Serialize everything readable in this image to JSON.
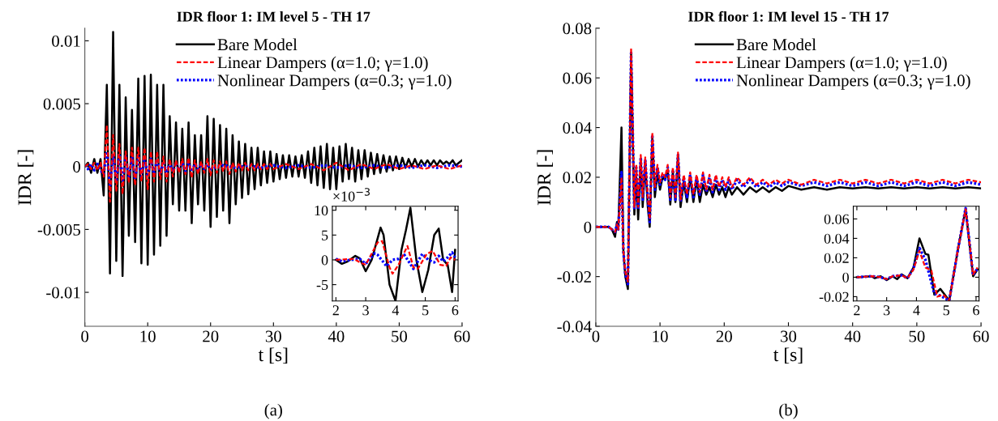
{
  "chart_data": [
    {
      "type": "line",
      "title": "IDR floor 1: IM level 5 - TH 17",
      "xlabel": "t [s]",
      "ylabel": "IDR [-]",
      "xlim": [
        0,
        60
      ],
      "xticks": [
        0,
        10,
        20,
        30,
        40,
        50,
        60
      ],
      "ylim": [
        -0.0127,
        0.011
      ],
      "yticks": [
        -0.01,
        -0.005,
        0,
        0.005,
        0.01
      ],
      "legend": "top right",
      "annotations": [
        "(a)"
      ],
      "series": [
        {
          "name": "Bare Model",
          "color": "#000000",
          "line_style": "solid",
          "x": [
            0,
            0.5,
            1,
            1.5,
            2,
            2.5,
            3,
            3.5,
            4,
            4.5,
            5,
            5.5,
            6,
            6.5,
            7,
            7.5,
            8,
            8.5,
            9,
            9.5,
            10,
            10.5,
            11,
            11.5,
            12,
            12.5,
            13,
            13.5,
            14,
            14.5,
            15,
            15.5,
            16,
            16.5,
            17,
            17.5,
            18,
            18.5,
            19,
            19.5,
            20,
            20.5,
            21,
            21.5,
            22,
            22.5,
            23,
            23.5,
            24,
            24.5,
            25,
            25.5,
            26,
            26.5,
            27,
            27.5,
            28,
            28.5,
            29,
            29.5,
            30,
            30.5,
            31,
            31.5,
            32,
            32.5,
            33,
            33.5,
            34,
            34.5,
            35,
            35.5,
            36,
            36.5,
            37,
            37.5,
            38,
            38.5,
            39,
            39.5,
            40,
            40.5,
            41,
            41.5,
            42,
            42.5,
            43,
            43.5,
            44,
            44.5,
            45,
            45.5,
            46,
            46.5,
            47,
            47.5,
            48,
            48.5,
            49,
            49.5,
            50,
            50.5,
            51,
            51.5,
            52,
            52.5,
            53,
            53.5,
            54,
            54.5,
            55,
            55.5,
            56,
            56.5,
            57,
            57.5,
            58,
            58.5,
            59,
            59.5,
            60
          ],
          "values": [
            0,
            0.0003,
            -0.0005,
            0.0006,
            -0.0005,
            0.0006,
            -0.0023,
            0.0065,
            -0.0085,
            0.0107,
            -0.0075,
            0.0065,
            -0.0087,
            0.0055,
            -0.0055,
            0.0045,
            -0.006,
            0.007,
            -0.0077,
            0.0072,
            -0.0078,
            0.0073,
            -0.007,
            0.0065,
            -0.0063,
            0.0065,
            -0.0055,
            0.004,
            -0.003,
            0.0035,
            -0.0035,
            0.003,
            -0.0035,
            0.0035,
            -0.0045,
            0.0025,
            -0.003,
            0.0025,
            -0.0035,
            0.004,
            -0.0048,
            0.0038,
            -0.004,
            0.0033,
            -0.0035,
            0.003,
            -0.0045,
            0.0025,
            -0.003,
            0.002,
            -0.0025,
            0.0018,
            -0.0022,
            0.0015,
            -0.0018,
            0.0015,
            -0.0015,
            0.0012,
            -0.0013,
            0.0012,
            -0.0012,
            0.001,
            -0.001,
            0.0009,
            -0.0009,
            0.0009,
            -0.0008,
            0.0008,
            -0.0008,
            0.0009,
            -0.0009,
            0.0012,
            -0.0013,
            0.0015,
            -0.0015,
            0.0016,
            -0.0017,
            0.0018,
            -0.0018,
            0.0015,
            -0.0018,
            0.0016,
            -0.0012,
            0.0018,
            -0.001,
            0.0015,
            -0.0012,
            0.0013,
            -0.001,
            0.0013,
            -0.0008,
            0.0011,
            -0.0006,
            0.001,
            -0.0005,
            0.0009,
            -0.0004,
            0.0008,
            -0.0003,
            0.0008,
            -0.0002,
            0.0007,
            -0.0001,
            0.0006,
            0,
            0.0006,
            0,
            0.0005,
            0.0001,
            0.0005,
            0.0001,
            0.0005,
            0.0001,
            0.0005,
            0.0002,
            0.0004,
            0.0002,
            0.0005,
            0.0001,
            0.0003,
            0.0005
          ]
        },
        {
          "name": "Linear Dampers (α=1.0; γ=1.0)",
          "color": "#ff0000",
          "line_style": "dashed",
          "x": [
            0,
            0.5,
            1,
            1.5,
            2,
            2.5,
            3,
            3.5,
            4,
            4.5,
            5,
            5.5,
            6,
            6.5,
            7,
            7.5,
            8,
            8.5,
            9,
            9.5,
            10,
            10.5,
            11,
            11.5,
            12,
            12.5,
            13,
            13.5,
            14,
            14.5,
            15,
            15.5,
            16,
            16.5,
            17,
            17.5,
            18,
            18.5,
            19,
            19.5,
            20,
            20.5,
            21,
            21.5,
            22,
            22.5,
            23,
            23.5,
            24,
            24.5,
            25,
            25.5,
            26,
            26.5,
            27,
            27.5,
            28,
            28.5,
            29,
            29.5,
            30,
            32,
            34,
            36,
            38,
            40,
            42,
            44,
            46,
            48,
            50,
            52,
            54,
            56,
            58,
            60
          ],
          "values": [
            0,
            0.0002,
            -0.0002,
            0.0003,
            -0.0003,
            0.0003,
            -0.0008,
            0.0033,
            -0.0028,
            0.0025,
            -0.002,
            0.0018,
            -0.0022,
            0.0012,
            -0.0013,
            0.0015,
            -0.0015,
            0.0015,
            -0.0012,
            0.0015,
            -0.0018,
            0.0012,
            -0.0012,
            0.0012,
            -0.001,
            0.0008,
            -0.0012,
            0.0006,
            -0.0008,
            0.0005,
            -0.0005,
            0.0006,
            -0.0006,
            0.0007,
            -0.0009,
            0.0005,
            -0.0006,
            0.0004,
            -0.0005,
            0.0006,
            -0.0007,
            0.0005,
            -0.0005,
            0.0004,
            -0.0004,
            0.0004,
            -0.0006,
            0.0003,
            -0.0004,
            0.0003,
            -0.0003,
            0.0003,
            -0.0003,
            0.0002,
            -0.0003,
            0.0002,
            -0.0002,
            0.0002,
            -0.0002,
            0.0002,
            -0.0002,
            0.0002,
            -0.0002,
            0.0002,
            -0.0003,
            0.0003,
            -0.0003,
            0.0002,
            -0.0002,
            0.0002,
            -0.0002,
            0.0001,
            -0.0002,
            0.0001,
            -0.0002,
            0.0001
          ]
        },
        {
          "name": "Nonlinear Dampers (α=0.3; γ=1.0)",
          "color": "#0000ff",
          "line_style": "dotted",
          "x": [
            0,
            0.5,
            1,
            1.5,
            2,
            2.5,
            3,
            3.5,
            4,
            4.5,
            5,
            5.5,
            6,
            6.5,
            7,
            7.5,
            8,
            8.5,
            9,
            9.5,
            10,
            10.5,
            11,
            11.5,
            12,
            12.5,
            13,
            13.5,
            14,
            14.5,
            15,
            15.5,
            16,
            16.5,
            17,
            17.5,
            18,
            18.5,
            19,
            19.5,
            20,
            22,
            24,
            26,
            28,
            30,
            32,
            34,
            36,
            38,
            40,
            42,
            44,
            46,
            48,
            50,
            52,
            54,
            56,
            58,
            60
          ],
          "values": [
            0.0001,
            -0.0002,
            0.0002,
            -0.0003,
            0.0002,
            -0.0003,
            -0.0006,
            0.0012,
            -0.0015,
            0.001,
            -0.0012,
            0.001,
            -0.0011,
            0.0008,
            -0.0009,
            0.0008,
            -0.001,
            0.0008,
            -0.0008,
            0.0007,
            -0.0008,
            0.0006,
            -0.0006,
            0.0006,
            -0.0006,
            0.0004,
            -0.0005,
            0.0003,
            -0.0004,
            0.0003,
            -0.0003,
            0.0003,
            -0.0004,
            0.0003,
            -0.0004,
            0.0002,
            -0.0002,
            0.0002,
            -0.0002,
            0.0002,
            -0.0002,
            0.0001,
            -0.0001,
            0.0001,
            -0.0001,
            0.0001,
            -0.0001,
            0.0001,
            -0.0001,
            0.0001,
            -0.0001,
            0.0001,
            -0.0001,
            0.0001,
            -0.0001,
            0.0001,
            -0.0001,
            0.0001,
            -0.0001,
            0.0001,
            0
          ]
        }
      ]
    },
    {
      "type": "line",
      "xlim": [
        1.88,
        6.1
      ],
      "xticks": [
        2,
        3,
        4,
        5,
        6
      ],
      "ylim": [
        -8.3,
        10.8
      ],
      "yticks": [
        -5,
        0,
        5,
        10
      ],
      "annotations": [
        "×10$^{−3}$"
      ],
      "series": [
        {
          "color": "#000000",
          "line_style": "solid",
          "x": [
            2,
            2.2,
            2.4,
            2.65,
            2.8,
            3.0,
            3.2,
            3.5,
            3.6,
            3.8,
            4.0,
            4.2,
            4.35,
            4.5,
            4.7,
            4.9,
            5.1,
            5.3,
            5.45,
            5.6,
            5.75,
            5.9,
            6.0
          ],
          "values": [
            0,
            -0.8,
            -0.3,
            0.8,
            0.3,
            -2.3,
            0,
            6.5,
            5,
            -5,
            -8.3,
            2,
            6,
            10.5,
            0,
            -6.5,
            -2,
            5,
            6.3,
            0,
            -1,
            -6.5,
            2
          ]
        },
        {
          "color": "#ff0000",
          "line_style": "dashed",
          "x": [
            2,
            2.6,
            2.8,
            3.0,
            3.4,
            3.55,
            3.8,
            3.9,
            4.1,
            4.4,
            4.6,
            4.75,
            5.05,
            5.25,
            5.5,
            5.7,
            5.85,
            6.0
          ],
          "values": [
            0,
            0.2,
            -0.5,
            -1,
            3.5,
            3.8,
            -1.5,
            -2.8,
            -1,
            2.8,
            -1.5,
            -1.8,
            1.2,
            1.8,
            -1,
            -1.2,
            0.5,
            0
          ]
        },
        {
          "color": "#0000ff",
          "line_style": "dotted",
          "x": [
            2,
            2.2,
            2.5,
            2.8,
            3.0,
            3.3,
            3.4,
            3.6,
            3.7,
            3.9,
            4.1,
            4.3,
            4.6,
            4.9,
            5.1,
            5.3,
            5.45,
            5.6,
            5.75,
            5.9,
            6.0
          ],
          "values": [
            0.2,
            -0.3,
            0,
            0.2,
            -0.8,
            1.3,
            1,
            -0.5,
            -1.3,
            0,
            0.2,
            1,
            -1.8,
            1.2,
            0,
            -0.5,
            0.8,
            -0.3,
            0.5,
            1.5,
            0.5
          ]
        }
      ]
    },
    {
      "type": "line",
      "title": "IDR floor 1: IM level 15 - TH 17",
      "xlabel": "t [s]",
      "ylabel": "IDR [-]",
      "xlim": [
        0,
        60
      ],
      "xticks": [
        0,
        10,
        20,
        30,
        40,
        50,
        60
      ],
      "ylim": [
        -0.04,
        0.08
      ],
      "yticks": [
        -0.04,
        -0.02,
        0,
        0.02,
        0.04,
        0.06,
        0.08
      ],
      "legend": "top right",
      "annotations": [
        "(b)"
      ],
      "series": [
        {
          "name": "Bare Model",
          "color": "#000000",
          "line_style": "solid",
          "x": [
            0,
            2,
            2.5,
            3,
            3.3,
            3.5,
            4.0,
            4.3,
            4.6,
            5.0,
            5.5,
            6.0,
            6.3,
            6.6,
            7.0,
            7.3,
            7.7,
            8.1,
            8.4,
            8.8,
            9.2,
            9.6,
            10.0,
            10.4,
            10.8,
            11.2,
            11.6,
            12.0,
            12.4,
            12.8,
            13.2,
            13.7,
            14.2,
            14.7,
            15.2,
            15.7,
            16.2,
            16.7,
            17.2,
            17.7,
            18.2,
            18.7,
            19.2,
            19.7,
            20.2,
            20.7,
            21.2,
            22,
            23,
            24,
            25,
            26,
            27,
            28,
            29,
            30,
            32,
            34,
            36,
            38,
            40,
            42,
            44,
            46,
            48,
            50,
            52,
            54,
            56,
            58,
            60
          ],
          "values": [
            0,
            0,
            -0.001,
            -0.004,
            0.002,
            -0.001,
            0.04,
            -0.01,
            -0.02,
            -0.025,
            0.07,
            0.005,
            0.02,
            0.003,
            0.027,
            0.008,
            0.026,
            0.008,
            0.0,
            0.036,
            0.012,
            0.022,
            0.015,
            0.02,
            0.019,
            0.023,
            0.009,
            0.022,
            0.01,
            0.029,
            0.008,
            0.018,
            0.01,
            0.02,
            0.01,
            0.019,
            0.01,
            0.017,
            0.013,
            0.016,
            0.012,
            0.017,
            0.013,
            0.016,
            0.012,
            0.016,
            0.013,
            0.016,
            0.013,
            0.016,
            0.014,
            0.016,
            0.014,
            0.016,
            0.0145,
            0.0165,
            0.015,
            0.016,
            0.015,
            0.016,
            0.0155,
            0.016,
            0.0155,
            0.016,
            0.0155,
            0.016,
            0.0155,
            0.016,
            0.0155,
            0.016,
            0.0155
          ]
        },
        {
          "name": "Linear Dampers (α=1.0; γ=1.0)",
          "color": "#ff0000",
          "line_style": "dashed",
          "x": [
            0,
            2,
            2.5,
            3,
            3.3,
            3.5,
            4.0,
            4.3,
            4.6,
            5.0,
            5.5,
            6.0,
            6.3,
            6.6,
            7.0,
            7.3,
            7.7,
            8.1,
            8.4,
            8.8,
            9.2,
            9.6,
            10.0,
            10.4,
            10.8,
            11.2,
            11.6,
            12.0,
            12.4,
            12.8,
            13.2,
            13.7,
            14.2,
            14.7,
            15.2,
            15.7,
            16.2,
            16.7,
            17.2,
            17.7,
            18.2,
            18.7,
            19.2,
            19.7,
            20.2,
            20.7,
            21.2,
            22,
            23,
            24,
            25,
            26,
            27,
            28,
            29,
            30,
            32,
            34,
            36,
            38,
            40,
            42,
            44,
            46,
            48,
            50,
            52,
            54,
            56,
            58,
            60
          ],
          "values": [
            0,
            0,
            -0.001,
            -0.002,
            0.001,
            -0.001,
            0.02,
            -0.01,
            -0.018,
            -0.022,
            0.072,
            0.008,
            0.025,
            0.008,
            0.029,
            0.012,
            0.028,
            0.012,
            0.003,
            0.038,
            0.016,
            0.025,
            0.018,
            0.022,
            0.02,
            0.025,
            0.012,
            0.024,
            0.012,
            0.03,
            0.011,
            0.021,
            0.013,
            0.022,
            0.013,
            0.021,
            0.014,
            0.022,
            0.015,
            0.021,
            0.015,
            0.021,
            0.016,
            0.02,
            0.016,
            0.02,
            0.016,
            0.02,
            0.017,
            0.02,
            0.017,
            0.019,
            0.017,
            0.019,
            0.0175,
            0.019,
            0.017,
            0.019,
            0.0175,
            0.019,
            0.0175,
            0.019,
            0.0175,
            0.019,
            0.0175,
            0.019,
            0.0175,
            0.019,
            0.0175,
            0.019,
            0.018
          ]
        },
        {
          "name": "Nonlinear Dampers (α=0.3; γ=1.0)",
          "color": "#0000ff",
          "line_style": "dotted",
          "x": [
            0,
            2,
            2.5,
            3,
            3.3,
            3.5,
            4.0,
            4.3,
            4.6,
            5.0,
            5.5,
            6.0,
            6.3,
            6.6,
            7.0,
            7.3,
            7.7,
            8.1,
            8.4,
            8.8,
            9.2,
            9.6,
            10.0,
            10.4,
            10.8,
            11.2,
            11.6,
            12.0,
            12.4,
            12.8,
            13.2,
            13.7,
            14.2,
            14.7,
            15.2,
            15.7,
            16.2,
            16.7,
            17.2,
            17.7,
            18.2,
            18.7,
            19.2,
            19.7,
            20.2,
            20.7,
            21.2,
            22,
            23,
            24,
            25,
            26,
            27,
            28,
            29,
            30,
            32,
            34,
            36,
            38,
            40,
            42,
            44,
            46,
            48,
            50,
            52,
            54,
            56,
            58,
            60
          ],
          "values": [
            0,
            0,
            -0.001,
            -0.002,
            0.001,
            -0.001,
            0.022,
            -0.01,
            -0.019,
            -0.023,
            0.07,
            0.007,
            0.024,
            0.007,
            0.028,
            0.011,
            0.027,
            0.011,
            0.002,
            0.037,
            0.015,
            0.024,
            0.017,
            0.021,
            0.019,
            0.024,
            0.011,
            0.023,
            0.011,
            0.029,
            0.01,
            0.02,
            0.012,
            0.021,
            0.012,
            0.02,
            0.013,
            0.021,
            0.014,
            0.02,
            0.014,
            0.02,
            0.015,
            0.019,
            0.015,
            0.019,
            0.015,
            0.019,
            0.016,
            0.019,
            0.016,
            0.018,
            0.016,
            0.018,
            0.0165,
            0.018,
            0.0165,
            0.018,
            0.0165,
            0.018,
            0.0165,
            0.018,
            0.0165,
            0.018,
            0.0165,
            0.018,
            0.0165,
            0.018,
            0.0165,
            0.018,
            0.017
          ]
        }
      ]
    },
    {
      "type": "line",
      "xlim": [
        1.88,
        6.1
      ],
      "xticks": [
        2,
        3,
        4,
        5,
        6
      ],
      "ylim": [
        -0.0245,
        0.073
      ],
      "yticks": [
        -0.02,
        0,
        0.02,
        0.04,
        0.06
      ],
      "series": [
        {
          "color": "#000000",
          "line_style": "solid",
          "x": [
            2,
            2.5,
            2.6,
            2.8,
            3.0,
            3.2,
            3.35,
            3.5,
            3.7,
            3.9,
            4.1,
            4.3,
            4.4,
            4.6,
            4.8,
            5.1,
            5.4,
            5.65,
            5.9,
            6.05
          ],
          "values": [
            0,
            0.001,
            -0.001,
            0.001,
            -0.003,
            0.001,
            -0.002,
            0.003,
            -0.001,
            0.01,
            0.04,
            0.024,
            0.023,
            -0.018,
            -0.012,
            -0.024,
            0.03,
            0.07,
            0.001,
            0.008
          ]
        },
        {
          "color": "#ff0000",
          "line_style": "dashed",
          "x": [
            2,
            2.5,
            2.8,
            3.0,
            3.2,
            3.5,
            3.7,
            3.9,
            4.1,
            4.3,
            4.5,
            4.7,
            4.9,
            5.1,
            5.4,
            5.65,
            5.9,
            6.05
          ],
          "values": [
            0,
            0.001,
            0,
            -0.002,
            0.001,
            0.002,
            -0.001,
            0.008,
            0.027,
            0.01,
            0.007,
            -0.02,
            -0.018,
            -0.024,
            0.03,
            0.07,
            0.003,
            0.01
          ]
        },
        {
          "color": "#0000ff",
          "line_style": "dotted",
          "x": [
            2,
            2.5,
            2.8,
            3.0,
            3.2,
            3.5,
            3.7,
            3.9,
            4.1,
            4.3,
            4.6,
            4.8,
            5.1,
            5.4,
            5.65,
            5.9,
            6.05
          ],
          "values": [
            0,
            0.001,
            0,
            -0.002,
            0.001,
            0.002,
            -0.001,
            0.009,
            0.03,
            0.018,
            -0.017,
            -0.019,
            -0.024,
            0.03,
            0.071,
            0.002,
            0.009
          ]
        }
      ]
    }
  ]
}
